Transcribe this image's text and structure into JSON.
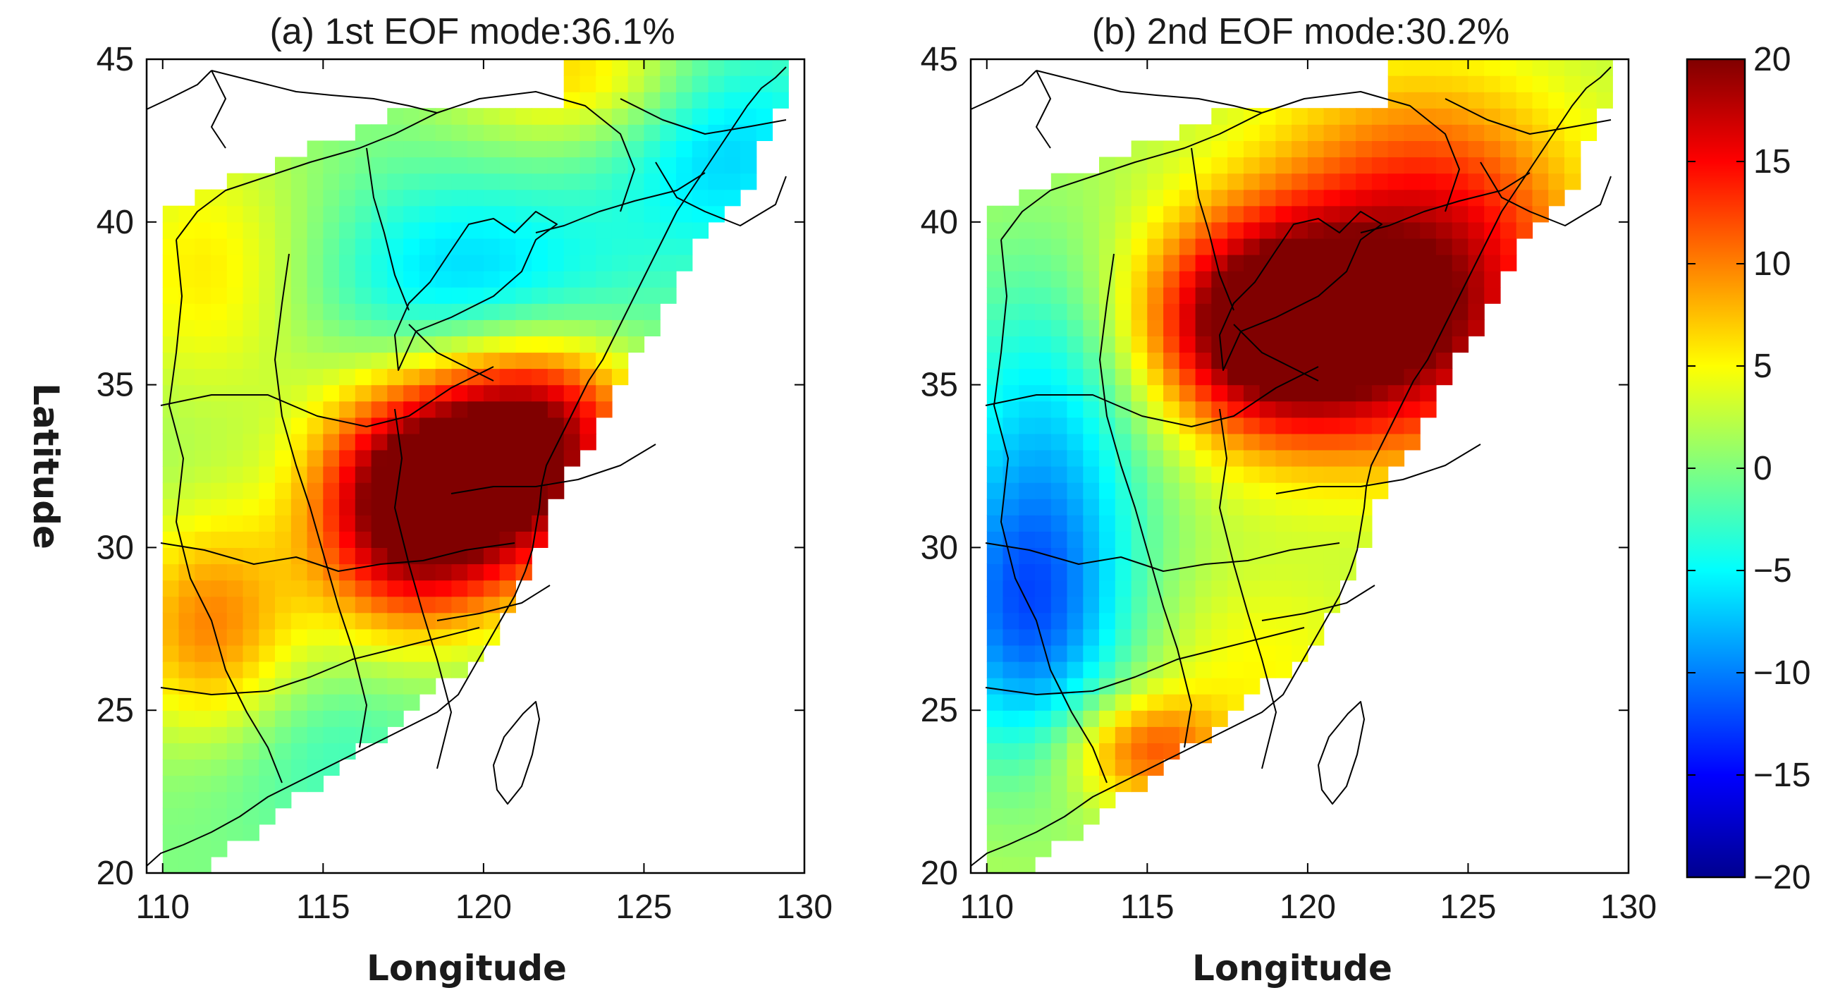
{
  "chart_data": [
    {
      "type": "heatmap",
      "title": "(a) 1st EOF mode:36.1%",
      "xlabel": "Longitude",
      "ylabel": "Latitude",
      "xlim": [
        109.5,
        130
      ],
      "ylim": [
        20,
        45
      ],
      "xticks": [
        "110",
        "115",
        "120",
        "125",
        "130"
      ],
      "yticks": [
        "20",
        "25",
        "30",
        "35",
        "40",
        "45"
      ],
      "centers": [
        {
          "lon": 120.0,
          "lat": 31.8,
          "value": 20,
          "sx": 2.8,
          "sy": 2.4
        },
        {
          "lon": 117.3,
          "lat": 31.0,
          "value": 13,
          "sx": 2.0,
          "sy": 2.6
        },
        {
          "lon": 121.8,
          "lat": 34.2,
          "value": 11,
          "sx": 2.2,
          "sy": 1.8
        },
        {
          "lon": 111.5,
          "lat": 27.5,
          "value": 10,
          "sx": 2.0,
          "sy": 2.6
        },
        {
          "lon": 111.5,
          "lat": 38.5,
          "value": 6,
          "sx": 2.5,
          "sy": 3.0
        },
        {
          "lon": 123.0,
          "lat": 44.5,
          "value": 7,
          "sx": 3.0,
          "sy": 1.5
        },
        {
          "lon": 119.5,
          "lat": 38.2,
          "value": -7,
          "sx": 3.5,
          "sy": 2.2
        },
        {
          "lon": 127.5,
          "lat": 42.5,
          "value": -7,
          "sx": 2.5,
          "sy": 2.5
        },
        {
          "lon": 114.5,
          "lat": 24.0,
          "value": -3,
          "sx": 3.0,
          "sy": 2.0
        }
      ],
      "base_value": 0
    },
    {
      "type": "heatmap",
      "title": "(b) 2nd EOF mode:30.2%",
      "xlabel": "Longitude",
      "ylabel": "",
      "xlim": [
        109.5,
        130
      ],
      "ylim": [
        20,
        45
      ],
      "xticks": [
        "110",
        "115",
        "120",
        "125",
        "130"
      ],
      "yticks": [
        "20",
        "25",
        "30",
        "35",
        "40",
        "45"
      ],
      "centers": [
        {
          "lon": 118.8,
          "lat": 37.0,
          "value": 18,
          "sx": 2.8,
          "sy": 2.2
        },
        {
          "lon": 120.5,
          "lat": 36.0,
          "value": 9,
          "sx": 3.0,
          "sy": 2.5
        },
        {
          "lon": 123.5,
          "lat": 40.5,
          "value": 10,
          "sx": 3.5,
          "sy": 3.0
        },
        {
          "lon": 125.0,
          "lat": 36.5,
          "value": 8,
          "sx": 2.5,
          "sy": 3.0
        },
        {
          "lon": 111.3,
          "lat": 28.0,
          "value": -13,
          "sx": 2.2,
          "sy": 3.2
        },
        {
          "lon": 112.0,
          "lat": 34.5,
          "value": -7,
          "sx": 2.5,
          "sy": 3.5
        },
        {
          "lon": 115.0,
          "lat": 23.8,
          "value": 10,
          "sx": 1.8,
          "sy": 1.2
        },
        {
          "lon": 118.5,
          "lat": 26.5,
          "value": 3,
          "sx": 2.5,
          "sy": 2.0
        }
      ],
      "base_value": 2
    }
  ],
  "colorbar": {
    "min": -20,
    "max": 20,
    "ticks": [
      "20",
      "15",
      "10",
      "5",
      "0",
      "−5",
      "−10",
      "−15",
      "−20"
    ],
    "colormap": "jet"
  }
}
